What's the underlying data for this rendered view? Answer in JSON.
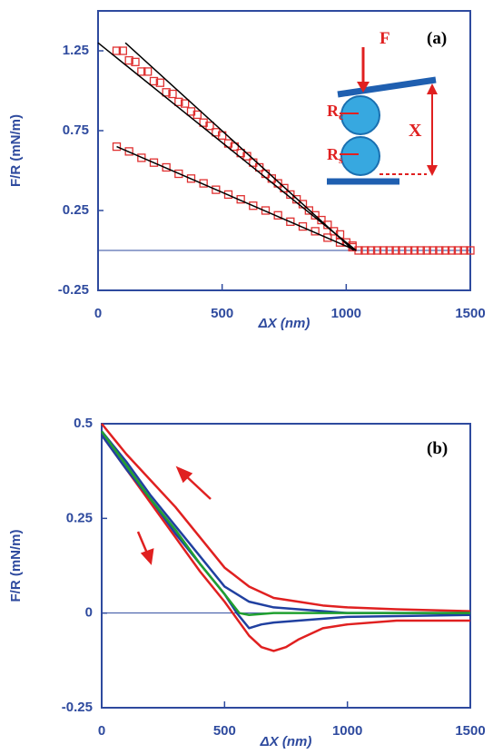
{
  "chart_data": [
    {
      "type": "scatter",
      "y_label": "F/R (mN/m)",
      "x_label": "ΔX (nm)",
      "xlim": [
        0,
        1500
      ],
      "xticks": [
        0,
        500,
        1000,
        1500
      ],
      "ylim": [
        -0.25,
        1.5
      ],
      "yticks": [
        -0.25,
        0.25,
        0.75,
        1.25
      ],
      "zero_line": true,
      "axis_color": "#2e4a9e",
      "annotations": [
        {
          "text": "(a)"
        },
        {
          "text": "F"
        },
        {
          "text": "R",
          "sub": "c"
        },
        {
          "text": "R",
          "sub": "s"
        },
        {
          "text": "X"
        }
      ],
      "series": [
        {
          "style": "markers",
          "color": "#e03030",
          "x": [
            75,
            125,
            175,
            225,
            275,
            325,
            375,
            425,
            475,
            525,
            575,
            625,
            675,
            725,
            775,
            825,
            875,
            925,
            975,
            1025
          ],
          "values": [
            1.25,
            1.19,
            1.12,
            1.06,
            0.99,
            0.93,
            0.87,
            0.8,
            0.74,
            0.67,
            0.61,
            0.55,
            0.48,
            0.42,
            0.35,
            0.29,
            0.22,
            0.16,
            0.1,
            0.03
          ]
        },
        {
          "style": "markers",
          "color": "#e03030",
          "x": [
            100,
            150,
            200,
            250,
            300,
            350,
            400,
            450,
            500,
            550,
            600,
            650,
            700,
            750,
            800,
            850,
            900,
            950,
            1000
          ],
          "values": [
            1.25,
            1.18,
            1.12,
            1.05,
            0.98,
            0.92,
            0.85,
            0.78,
            0.72,
            0.65,
            0.59,
            0.52,
            0.45,
            0.39,
            0.32,
            0.25,
            0.19,
            0.12,
            0.05
          ]
        },
        {
          "style": "markers",
          "color": "#e03030",
          "x": [
            75,
            125,
            175,
            225,
            275,
            325,
            375,
            425,
            475,
            525,
            575,
            625,
            675,
            725,
            775,
            825,
            875,
            925,
            975,
            1025
          ],
          "values": [
            0.65,
            0.62,
            0.58,
            0.55,
            0.52,
            0.48,
            0.45,
            0.42,
            0.38,
            0.35,
            0.32,
            0.28,
            0.25,
            0.22,
            0.18,
            0.15,
            0.12,
            0.08,
            0.05,
            0.02
          ]
        },
        {
          "style": "markers",
          "color": "#e03030",
          "x": [
            1050,
            1075,
            1100,
            1125,
            1150,
            1175,
            1200,
            1225,
            1250,
            1275,
            1300,
            1325,
            1350,
            1375,
            1400,
            1425,
            1450,
            1475,
            1500
          ],
          "values": [
            0,
            0,
            0,
            0,
            0,
            0,
            0,
            0,
            0,
            0,
            0,
            0,
            0,
            0,
            0,
            0,
            0,
            0,
            0
          ]
        },
        {
          "style": "line",
          "color": "#000000",
          "x": [
            0,
            1040
          ],
          "values": [
            1.3,
            0
          ]
        },
        {
          "style": "line",
          "color": "#000000",
          "x": [
            110,
            1030
          ],
          "values": [
            1.3,
            0
          ]
        },
        {
          "style": "line",
          "color": "#000000",
          "x": [
            75,
            1040
          ],
          "values": [
            0.65,
            0
          ]
        }
      ]
    },
    {
      "type": "line",
      "y_label": "F/R (mN/m)",
      "x_label": "ΔX (nm)",
      "xlim": [
        0,
        1500
      ],
      "xticks": [
        0,
        500,
        1000,
        1500
      ],
      "ylim": [
        -0.25,
        0.5
      ],
      "yticks": [
        -0.25,
        0,
        0.25,
        0.5
      ],
      "zero_line": true,
      "axis_color": "#2e4a9e",
      "annotations": [
        {
          "text": "(b)"
        }
      ],
      "series": [
        {
          "color": "#e02020",
          "x": [
            0,
            100,
            200,
            300,
            400,
            500,
            600,
            700,
            800,
            900,
            1000,
            1200,
            1500
          ],
          "values": [
            0.5,
            0.42,
            0.35,
            0.28,
            0.2,
            0.12,
            0.07,
            0.04,
            0.03,
            0.02,
            0.015,
            0.01,
            0.005
          ]
        },
        {
          "color": "#e02020",
          "x": [
            0,
            100,
            200,
            300,
            400,
            500,
            600,
            650,
            700,
            750,
            800,
            900,
            1000,
            1200,
            1500
          ],
          "values": [
            0.47,
            0.38,
            0.29,
            0.2,
            0.11,
            0.03,
            -0.06,
            -0.09,
            -0.1,
            -0.09,
            -0.07,
            -0.04,
            -0.03,
            -0.02,
            -0.02
          ]
        },
        {
          "color": "#2040a0",
          "x": [
            0,
            100,
            200,
            300,
            400,
            500,
            600,
            700,
            800,
            1000,
            1500
          ],
          "values": [
            0.48,
            0.4,
            0.31,
            0.23,
            0.15,
            0.07,
            0.03,
            0.015,
            0.01,
            0,
            0
          ]
        },
        {
          "color": "#2040a0",
          "x": [
            0,
            100,
            200,
            300,
            400,
            500,
            550,
            600,
            650,
            700,
            800,
            1000,
            1500
          ],
          "values": [
            0.47,
            0.38,
            0.3,
            0.21,
            0.13,
            0.05,
            0,
            -0.04,
            -0.03,
            -0.025,
            -0.02,
            -0.01,
            -0.005
          ]
        },
        {
          "color": "#20a030",
          "x": [
            0,
            100,
            200,
            300,
            400,
            500,
            560,
            600,
            700,
            1000,
            1500
          ],
          "values": [
            0.48,
            0.39,
            0.3,
            0.22,
            0.13,
            0.05,
            0,
            -0.005,
            0,
            0,
            0
          ]
        }
      ]
    }
  ]
}
